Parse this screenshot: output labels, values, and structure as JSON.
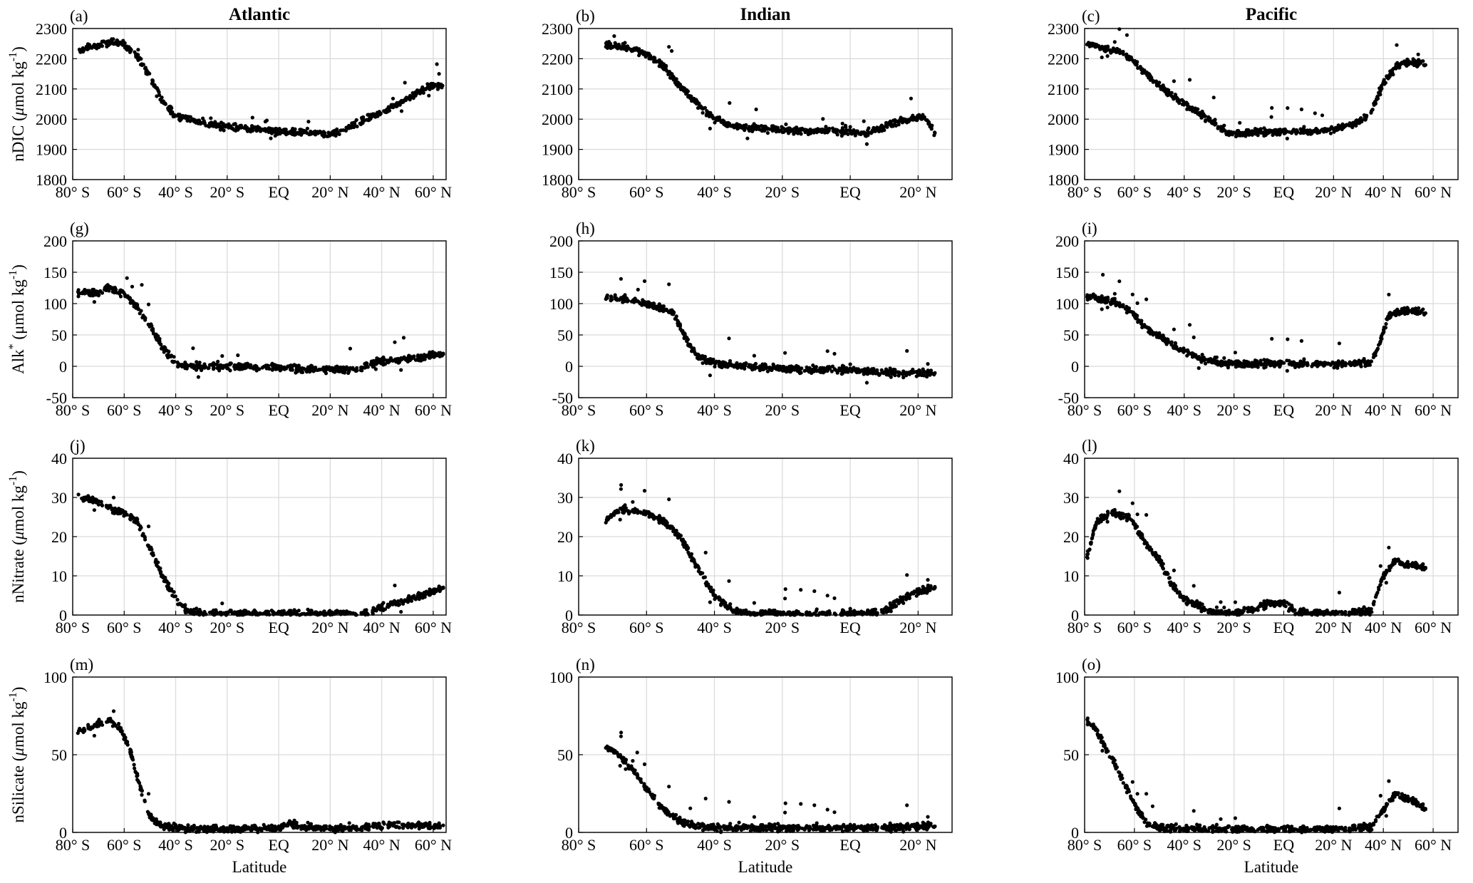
{
  "chart_data": [
    {
      "type": "scatter",
      "panel_label": "(a)",
      "title": "Atlantic",
      "ylabel_main": "nDIC (",
      "ylabel_mu": "μ",
      "ylabel_rest": "mol kg",
      "ylabel_sup": "-1",
      "ylabel_close": ")",
      "xlabel": "",
      "ylim": [
        1800,
        2300
      ],
      "yticks": [
        1800,
        1900,
        2000,
        2100,
        2200,
        2300
      ],
      "xlim": [
        -80,
        65
      ],
      "xticks": [
        -80,
        -60,
        -40,
        -20,
        0,
        20,
        40,
        60
      ],
      "xticklabels": [
        "80° S",
        "60° S",
        "40° S",
        "20° S",
        "EQ",
        "20° N",
        "40° N",
        "60° N"
      ],
      "grid": true,
      "color": "#000000",
      "profile": [
        [
          -78,
          2225
        ],
        [
          -72,
          2240
        ],
        [
          -65,
          2255
        ],
        [
          -60,
          2245
        ],
        [
          -55,
          2210
        ],
        [
          -50,
          2140
        ],
        [
          -45,
          2060
        ],
        [
          -40,
          2010
        ],
        [
          -35,
          2000
        ],
        [
          -30,
          1990
        ],
        [
          -20,
          1975
        ],
        [
          -10,
          1968
        ],
        [
          0,
          1960
        ],
        [
          10,
          1955
        ],
        [
          20,
          1950
        ],
        [
          25,
          1960
        ],
        [
          30,
          1985
        ],
        [
          35,
          2005
        ],
        [
          40,
          2025
        ],
        [
          45,
          2045
        ],
        [
          50,
          2070
        ],
        [
          55,
          2095
        ],
        [
          60,
          2110
        ],
        [
          64,
          2105
        ]
      ]
    },
    {
      "type": "scatter",
      "panel_label": "(b)",
      "title": "Indian",
      "ylabel_main": "",
      "ylabel_mu": "",
      "ylabel_rest": "",
      "ylabel_sup": "",
      "ylabel_close": "",
      "xlabel": "",
      "ylim": [
        1800,
        2300
      ],
      "yticks": [
        1800,
        1900,
        2000,
        2100,
        2200,
        2300
      ],
      "xlim": [
        -80,
        30
      ],
      "xticks": [
        -80,
        -60,
        -40,
        -20,
        0,
        20
      ],
      "xticklabels": [
        "80° S",
        "60° S",
        "40° S",
        "20° S",
        "EQ",
        "20° N"
      ],
      "grid": true,
      "color": "#000000",
      "profile": [
        [
          -72,
          2245
        ],
        [
          -65,
          2235
        ],
        [
          -60,
          2215
        ],
        [
          -55,
          2175
        ],
        [
          -50,
          2110
        ],
        [
          -45,
          2050
        ],
        [
          -40,
          2000
        ],
        [
          -35,
          1980
        ],
        [
          -30,
          1970
        ],
        [
          -20,
          1965
        ],
        [
          -10,
          1962
        ],
        [
          0,
          1958
        ],
        [
          5,
          1955
        ],
        [
          15,
          1995
        ],
        [
          22,
          2010
        ],
        [
          25,
          1950
        ]
      ]
    },
    {
      "type": "scatter",
      "panel_label": "(c)",
      "title": "Pacific",
      "ylabel_main": "",
      "ylabel_mu": "",
      "ylabel_rest": "",
      "ylabel_sup": "",
      "ylabel_close": "",
      "xlabel": "",
      "ylim": [
        1800,
        2300
      ],
      "yticks": [
        1800,
        1900,
        2000,
        2100,
        2200,
        2300
      ],
      "xlim": [
        -80,
        70
      ],
      "xticks": [
        -80,
        -60,
        -40,
        -20,
        0,
        20,
        40,
        60
      ],
      "xticklabels": [
        "80° S",
        "60° S",
        "40° S",
        "20° S",
        "EQ",
        "20° N",
        "40° N",
        "60° N"
      ],
      "grid": true,
      "color": "#000000",
      "profile": [
        [
          -79,
          2250
        ],
        [
          -72,
          2235
        ],
        [
          -65,
          2220
        ],
        [
          -60,
          2190
        ],
        [
          -55,
          2150
        ],
        [
          -50,
          2110
        ],
        [
          -40,
          2050
        ],
        [
          -30,
          2000
        ],
        [
          -22,
          1950
        ],
        [
          -15,
          1955
        ],
        [
          0,
          1960
        ],
        [
          10,
          1960
        ],
        [
          20,
          1965
        ],
        [
          30,
          1990
        ],
        [
          35,
          2020
        ],
        [
          40,
          2120
        ],
        [
          45,
          2175
        ],
        [
          50,
          2190
        ],
        [
          57,
          2180
        ]
      ]
    },
    {
      "type": "scatter",
      "panel_label": "(g)",
      "title": "",
      "ylabel_main": "Alk",
      "ylabel_mu": "",
      "ylabel_rest": "",
      "ylabel_sup": "*",
      "ylabel_close": " (μmol kg",
      "ylabel_sup2": "-1",
      "ylabel_end": ")",
      "xlabel": "",
      "ylim": [
        -50,
        200
      ],
      "yticks": [
        -50,
        0,
        50,
        100,
        150,
        200
      ],
      "xlim": [
        -80,
        65
      ],
      "xticks": [
        -80,
        -60,
        -40,
        -20,
        0,
        20,
        40,
        60
      ],
      "xticklabels": [
        "80° S",
        "60° S",
        "40° S",
        "20° S",
        "EQ",
        "20° N",
        "40° N",
        "60° N"
      ],
      "grid": true,
      "color": "#000000",
      "profile": [
        [
          -78,
          117
        ],
        [
          -70,
          118
        ],
        [
          -65,
          125
        ],
        [
          -60,
          115
        ],
        [
          -55,
          95
        ],
        [
          -50,
          65
        ],
        [
          -45,
          30
        ],
        [
          -40,
          5
        ],
        [
          -35,
          0
        ],
        [
          -20,
          0
        ],
        [
          0,
          -2
        ],
        [
          20,
          -5
        ],
        [
          30,
          -5
        ],
        [
          40,
          8
        ],
        [
          50,
          12
        ],
        [
          60,
          18
        ],
        [
          64,
          20
        ]
      ]
    },
    {
      "type": "scatter",
      "panel_label": "(h)",
      "title": "",
      "ylabel_main": "",
      "ylabel_mu": "",
      "ylabel_rest": "",
      "ylabel_sup": "",
      "ylabel_close": "",
      "xlabel": "",
      "ylim": [
        -50,
        200
      ],
      "yticks": [
        -50,
        0,
        50,
        100,
        150,
        200
      ],
      "xlim": [
        -80,
        30
      ],
      "xticks": [
        -80,
        -60,
        -40,
        -20,
        0,
        20
      ],
      "xticklabels": [
        "80° S",
        "60° S",
        "40° S",
        "20° S",
        "EQ",
        "20° N"
      ],
      "grid": true,
      "color": "#000000",
      "profile": [
        [
          -72,
          110
        ],
        [
          -65,
          105
        ],
        [
          -60,
          100
        ],
        [
          -55,
          92
        ],
        [
          -52,
          85
        ],
        [
          -48,
          40
        ],
        [
          -45,
          15
        ],
        [
          -40,
          5
        ],
        [
          -30,
          0
        ],
        [
          -20,
          -3
        ],
        [
          -10,
          -5
        ],
        [
          0,
          -5
        ],
        [
          10,
          -10
        ],
        [
          20,
          -10
        ],
        [
          25,
          -12
        ]
      ]
    },
    {
      "type": "scatter",
      "panel_label": "(i)",
      "title": "",
      "ylabel_main": "",
      "ylabel_mu": "",
      "ylabel_rest": "",
      "ylabel_sup": "",
      "ylabel_close": "",
      "xlabel": "",
      "ylim": [
        -50,
        200
      ],
      "yticks": [
        -50,
        0,
        50,
        100,
        150,
        200
      ],
      "xlim": [
        -80,
        70
      ],
      "xticks": [
        -80,
        -60,
        -40,
        -20,
        0,
        20,
        40,
        60
      ],
      "xticklabels": [
        "80° S",
        "60° S",
        "40° S",
        "20° S",
        "EQ",
        "20° N",
        "40° N",
        "60° N"
      ],
      "grid": true,
      "color": "#000000",
      "profile": [
        [
          -79,
          112
        ],
        [
          -70,
          105
        ],
        [
          -62,
          90
        ],
        [
          -55,
          60
        ],
        [
          -45,
          35
        ],
        [
          -35,
          15
        ],
        [
          -25,
          5
        ],
        [
          -15,
          3
        ],
        [
          0,
          5
        ],
        [
          20,
          3
        ],
        [
          35,
          5
        ],
        [
          38,
          30
        ],
        [
          42,
          80
        ],
        [
          48,
          90
        ],
        [
          57,
          85
        ]
      ]
    },
    {
      "type": "scatter",
      "panel_label": "(j)",
      "title": "",
      "ylabel_main": "nNitrate (",
      "ylabel_mu": "μ",
      "ylabel_rest": "mol kg",
      "ylabel_sup": "-1",
      "ylabel_close": ")",
      "xlabel": "",
      "ylim": [
        0,
        40
      ],
      "yticks": [
        0,
        10,
        20,
        30,
        40
      ],
      "xlim": [
        -80,
        65
      ],
      "xticks": [
        -80,
        -60,
        -40,
        -20,
        0,
        20,
        40,
        60
      ],
      "xticklabels": [
        "80° S",
        "60° S",
        "40° S",
        "20° S",
        "EQ",
        "20° N",
        "40° N",
        "60° N"
      ],
      "grid": true,
      "color": "#000000",
      "profile": [
        [
          -78,
          30
        ],
        [
          -70,
          29
        ],
        [
          -65,
          27
        ],
        [
          -60,
          26
        ],
        [
          -55,
          24
        ],
        [
          -50,
          17
        ],
        [
          -45,
          10
        ],
        [
          -40,
          4
        ],
        [
          -35,
          1
        ],
        [
          -30,
          0.3
        ],
        [
          0,
          0.5
        ],
        [
          20,
          0.3
        ],
        [
          35,
          0.5
        ],
        [
          40,
          2
        ],
        [
          50,
          4
        ],
        [
          60,
          6
        ],
        [
          64,
          7
        ]
      ]
    },
    {
      "type": "scatter",
      "panel_label": "(k)",
      "title": "",
      "ylabel_main": "",
      "ylabel_mu": "",
      "ylabel_rest": "",
      "ylabel_sup": "",
      "ylabel_close": "",
      "xlabel": "",
      "ylim": [
        0,
        40
      ],
      "yticks": [
        0,
        10,
        20,
        30,
        40
      ],
      "xlim": [
        -80,
        30
      ],
      "xticks": [
        -80,
        -60,
        -40,
        -20,
        0,
        20
      ],
      "xticklabels": [
        "80° S",
        "60° S",
        "40° S",
        "20° S",
        "EQ",
        "20° N"
      ],
      "grid": true,
      "color": "#000000",
      "profile": [
        [
          -72,
          24
        ],
        [
          -68,
          27
        ],
        [
          -60,
          26
        ],
        [
          -55,
          24
        ],
        [
          -50,
          20
        ],
        [
          -45,
          12
        ],
        [
          -40,
          5
        ],
        [
          -35,
          1.5
        ],
        [
          -30,
          0.3
        ],
        [
          0,
          0.3
        ],
        [
          10,
          0.8
        ],
        [
          15,
          4
        ],
        [
          20,
          6
        ],
        [
          25,
          7
        ]
      ]
    },
    {
      "type": "scatter",
      "panel_label": "(l)",
      "title": "",
      "ylabel_main": "",
      "ylabel_mu": "",
      "ylabel_rest": "",
      "ylabel_sup": "",
      "ylabel_close": "",
      "xlabel": "",
      "ylim": [
        0,
        40
      ],
      "yticks": [
        0,
        10,
        20,
        30,
        40
      ],
      "xlim": [
        -80,
        70
      ],
      "xticks": [
        -80,
        -60,
        -40,
        -20,
        0,
        20,
        40,
        60
      ],
      "xticklabels": [
        "80° S",
        "60° S",
        "40° S",
        "20° S",
        "EQ",
        "20° N",
        "40° N",
        "60° N"
      ],
      "grid": true,
      "color": "#000000",
      "profile": [
        [
          -79,
          15
        ],
        [
          -75,
          24
        ],
        [
          -70,
          26
        ],
        [
          -62,
          25
        ],
        [
          -55,
          18
        ],
        [
          -50,
          14
        ],
        [
          -45,
          8
        ],
        [
          -40,
          4
        ],
        [
          -30,
          1
        ],
        [
          -20,
          0.3
        ],
        [
          -5,
          3
        ],
        [
          0,
          3
        ],
        [
          5,
          1
        ],
        [
          20,
          0.3
        ],
        [
          35,
          1
        ],
        [
          40,
          10
        ],
        [
          45,
          14
        ],
        [
          50,
          13
        ],
        [
          57,
          12
        ]
      ]
    },
    {
      "type": "scatter",
      "panel_label": "(m)",
      "title": "",
      "ylabel_main": "nSilicate (",
      "ylabel_mu": "μ",
      "ylabel_rest": "mol kg",
      "ylabel_sup": "-1",
      "ylabel_close": ")",
      "xlabel": "Latitude",
      "ylim": [
        0,
        100
      ],
      "yticks": [
        0,
        50,
        100
      ],
      "xlim": [
        -80,
        65
      ],
      "xticks": [
        -80,
        -60,
        -40,
        -20,
        0,
        20,
        40,
        60
      ],
      "xticklabels": [
        "80° S",
        "60° S",
        "40° S",
        "20° S",
        "EQ",
        "20° N",
        "40° N",
        "60° N"
      ],
      "grid": true,
      "color": "#000000",
      "profile": [
        [
          -78,
          65
        ],
        [
          -72,
          68
        ],
        [
          -66,
          72
        ],
        [
          -62,
          68
        ],
        [
          -58,
          55
        ],
        [
          -54,
          30
        ],
        [
          -50,
          10
        ],
        [
          -45,
          4
        ],
        [
          -40,
          3
        ],
        [
          -20,
          2
        ],
        [
          0,
          3
        ],
        [
          5,
          6
        ],
        [
          10,
          4
        ],
        [
          20,
          2
        ],
        [
          40,
          4
        ],
        [
          50,
          5
        ],
        [
          60,
          4
        ],
        [
          64,
          4
        ]
      ]
    },
    {
      "type": "scatter",
      "panel_label": "(n)",
      "title": "",
      "ylabel_main": "",
      "ylabel_mu": "",
      "ylabel_rest": "",
      "ylabel_sup": "",
      "ylabel_close": "",
      "xlabel": "Latitude",
      "ylim": [
        0,
        100
      ],
      "yticks": [
        0,
        50,
        100
      ],
      "xlim": [
        -80,
        30
      ],
      "xticks": [
        -80,
        -60,
        -40,
        -20,
        0,
        20
      ],
      "xticklabels": [
        "80° S",
        "60° S",
        "40° S",
        "20° S",
        "EQ",
        "20° N"
      ],
      "grid": true,
      "color": "#000000",
      "profile": [
        [
          -72,
          55
        ],
        [
          -68,
          50
        ],
        [
          -64,
          40
        ],
        [
          -60,
          28
        ],
        [
          -55,
          15
        ],
        [
          -50,
          7
        ],
        [
          -45,
          4
        ],
        [
          -40,
          3
        ],
        [
          -20,
          3
        ],
        [
          0,
          3
        ],
        [
          10,
          3
        ],
        [
          20,
          4
        ],
        [
          25,
          4
        ]
      ]
    },
    {
      "type": "scatter",
      "panel_label": "(o)",
      "title": "",
      "ylabel_main": "",
      "ylabel_mu": "",
      "ylabel_rest": "",
      "ylabel_sup": "",
      "ylabel_close": "",
      "xlabel": "Latitude",
      "ylim": [
        0,
        100
      ],
      "yticks": [
        0,
        50,
        100
      ],
      "xlim": [
        -80,
        70
      ],
      "xticks": [
        -80,
        -60,
        -40,
        -20,
        0,
        20,
        40,
        60
      ],
      "xticklabels": [
        "80° S",
        "60° S",
        "40° S",
        "20° S",
        "EQ",
        "20° N",
        "40° N",
        "60° N"
      ],
      "grid": true,
      "color": "#000000",
      "profile": [
        [
          -79,
          72
        ],
        [
          -75,
          65
        ],
        [
          -70,
          50
        ],
        [
          -65,
          35
        ],
        [
          -60,
          18
        ],
        [
          -55,
          6
        ],
        [
          -50,
          3
        ],
        [
          -30,
          2
        ],
        [
          0,
          2
        ],
        [
          20,
          2
        ],
        [
          35,
          3
        ],
        [
          40,
          15
        ],
        [
          45,
          25
        ],
        [
          50,
          22
        ],
        [
          57,
          15
        ]
      ]
    }
  ]
}
